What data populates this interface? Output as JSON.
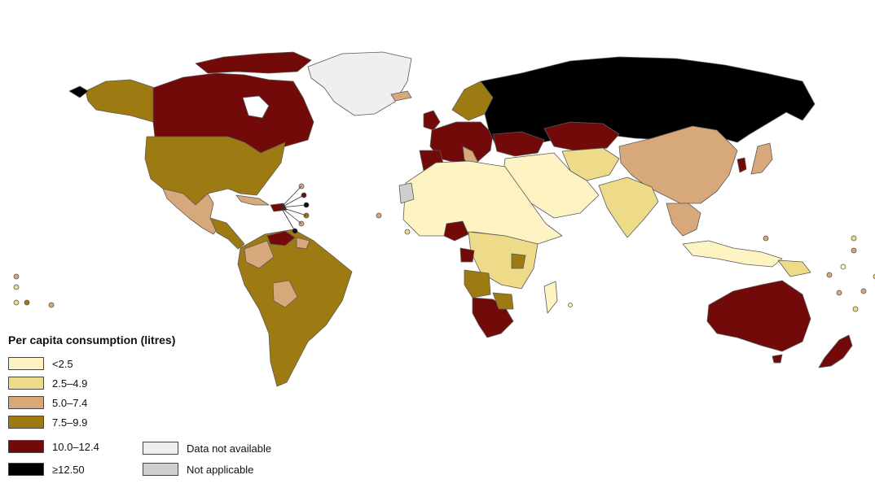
{
  "legend": {
    "title": "Per capita consumption (litres)",
    "classes": [
      {
        "label": "<2.5",
        "color": "#fdf3c3"
      },
      {
        "label": "2.5–4.9",
        "color": "#eedb8a"
      },
      {
        "label": "5.0–7.4",
        "color": "#d6a87a"
      },
      {
        "label": "7.5–9.9",
        "color": "#9e7a12"
      },
      {
        "label": "10.0–12.4",
        "color": "#730a0a"
      },
      {
        "label": "≥12.50",
        "color": "#000000"
      }
    ],
    "special": [
      {
        "label": "Data not available",
        "color": "#efefef"
      },
      {
        "label": "Not applicable",
        "color": "#cfcfcf"
      }
    ]
  }
}
